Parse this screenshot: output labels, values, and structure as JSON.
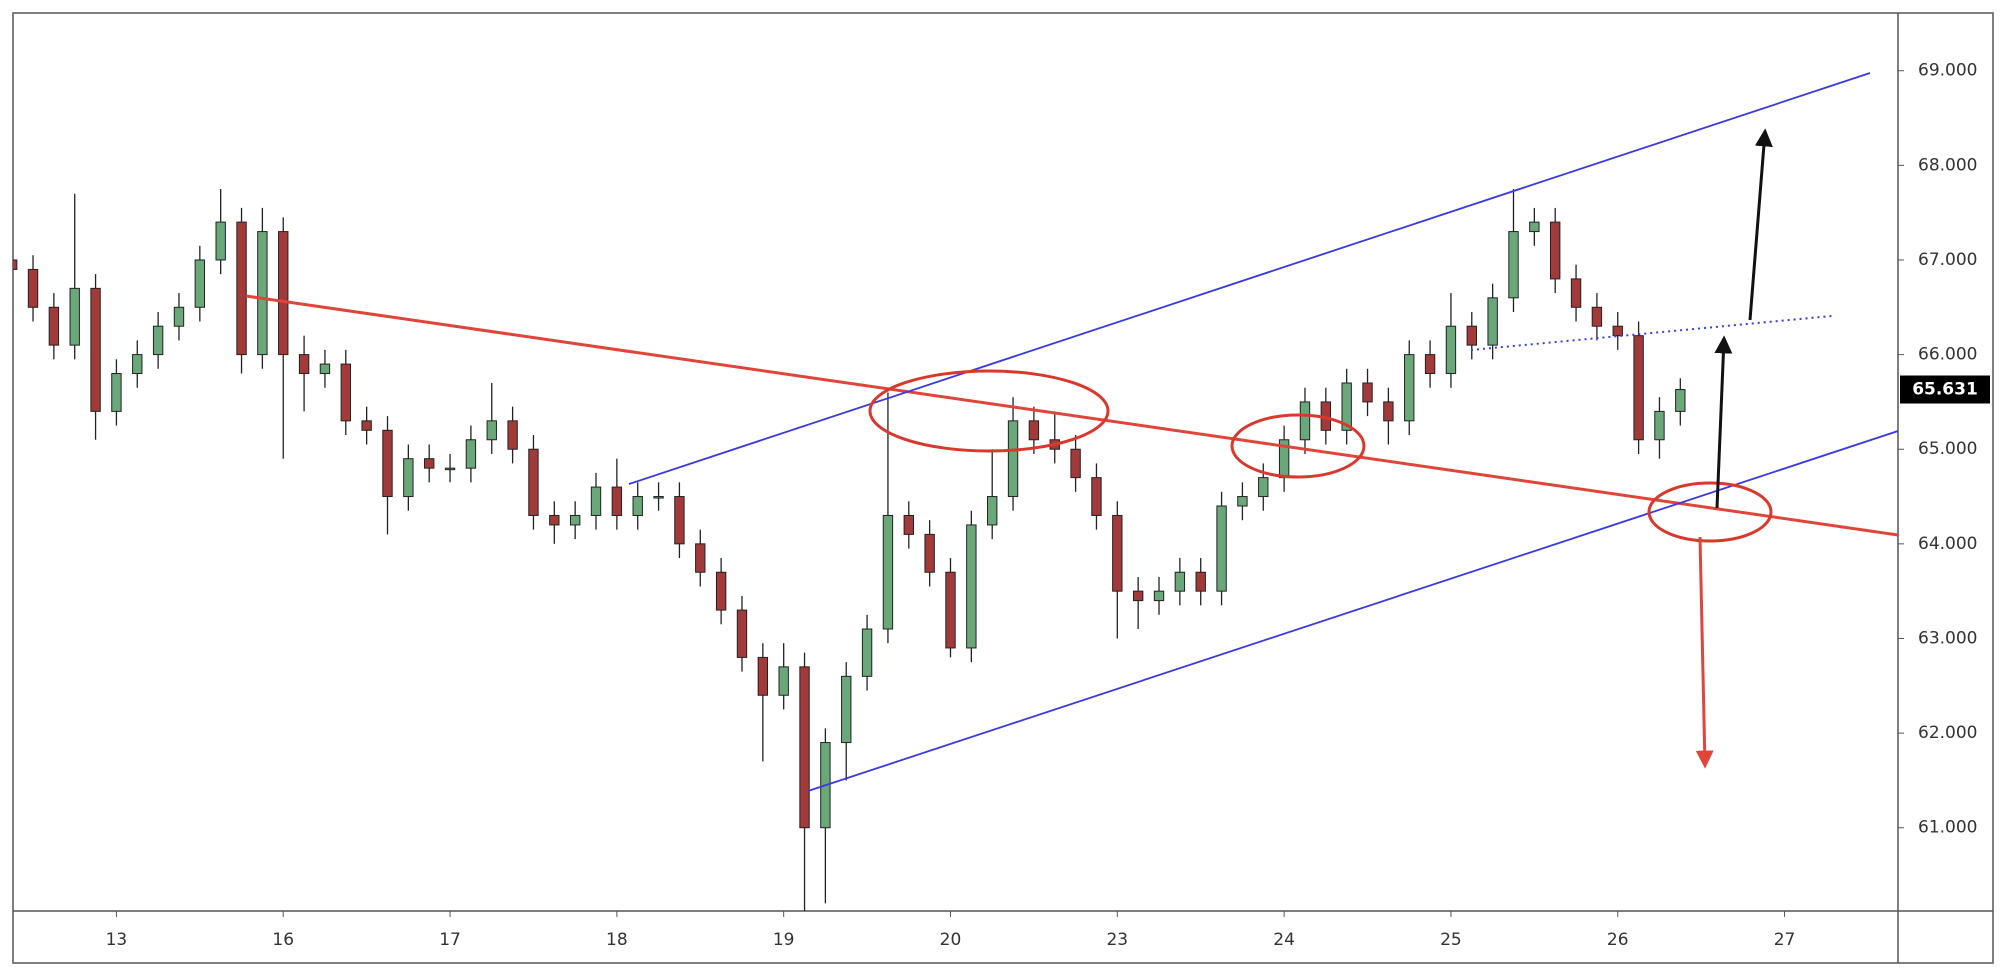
{
  "chart_data": {
    "type": "candlestick",
    "x": [
      -0.625,
      -0.5,
      -0.375,
      -0.25,
      -0.125,
      0,
      0.125,
      0.25,
      0.375,
      0.5,
      0.625,
      0.75,
      0.875,
      1,
      1.125,
      1.25,
      1.375,
      1.5,
      1.625,
      1.75,
      1.875,
      2,
      2.125,
      2.25,
      2.375,
      2.5,
      2.625,
      2.75,
      2.875,
      3,
      3.125,
      3.25,
      3.375,
      3.5,
      3.625,
      3.75,
      3.875,
      4,
      4.125,
      4.25,
      4.375,
      4.5,
      4.625,
      4.75,
      4.875,
      5,
      5.125,
      5.25,
      5.375,
      5.5,
      5.625,
      5.75,
      5.875,
      6,
      6.125,
      6.25,
      6.375,
      6.5,
      6.625,
      6.75,
      6.875,
      7,
      7.125,
      7.25,
      7.375,
      7.5,
      7.625,
      7.75,
      7.875,
      8,
      8.125,
      8.25,
      8.375,
      8.5,
      8.625,
      8.75,
      8.875,
      9,
      9.125,
      9.25,
      9.375
    ],
    "series": {
      "up_color": "#6aa87a",
      "down_color": "#a33a3a",
      "open": [
        67.0,
        66.9,
        66.5,
        66.1,
        66.7,
        65.4,
        65.8,
        66.0,
        66.3,
        66.5,
        67.0,
        67.4,
        66.0,
        67.3,
        66.0,
        65.8,
        65.9,
        65.3,
        65.2,
        64.5,
        64.9,
        64.8,
        64.8,
        65.1,
        65.3,
        65.0,
        64.3,
        64.2,
        64.3,
        64.6,
        64.3,
        64.5,
        64.5,
        64.0,
        63.7,
        63.3,
        62.8,
        62.4,
        62.7,
        61.0,
        61.9,
        62.6,
        63.1,
        64.3,
        64.1,
        63.7,
        62.9,
        64.2,
        64.5,
        65.3,
        65.1,
        65.0,
        64.7,
        64.3,
        63.5,
        63.4,
        63.5,
        63.7,
        63.5,
        64.4,
        64.5,
        64.7,
        65.1,
        65.5,
        65.2,
        65.7,
        65.5,
        65.3,
        66.0,
        65.8,
        66.3,
        66.1,
        66.6,
        67.3,
        67.4,
        66.8,
        66.5,
        66.3,
        66.2,
        65.1,
        65.4
      ],
      "high": [
        67.15,
        67.05,
        66.65,
        67.7,
        66.85,
        65.95,
        66.15,
        66.45,
        66.65,
        67.15,
        67.75,
        67.55,
        67.55,
        67.45,
        66.2,
        66.05,
        66.05,
        65.45,
        65.35,
        65.05,
        65.05,
        64.95,
        65.25,
        65.7,
        65.45,
        65.15,
        64.45,
        64.45,
        64.75,
        64.9,
        64.65,
        64.65,
        64.65,
        64.15,
        63.85,
        63.45,
        62.95,
        62.95,
        62.85,
        62.05,
        62.75,
        63.25,
        65.6,
        64.45,
        64.25,
        63.85,
        64.35,
        65.0,
        65.55,
        65.45,
        65.4,
        65.15,
        64.85,
        64.45,
        63.65,
        63.65,
        63.85,
        63.85,
        64.55,
        64.65,
        64.85,
        65.25,
        65.65,
        65.65,
        65.85,
        65.85,
        65.65,
        66.15,
        66.15,
        66.65,
        66.45,
        66.75,
        67.75,
        67.55,
        67.55,
        66.95,
        66.65,
        66.45,
        66.35,
        65.55,
        65.75
      ],
      "low": [
        66.75,
        66.35,
        65.95,
        65.95,
        65.1,
        65.25,
        65.65,
        65.85,
        66.15,
        66.35,
        66.85,
        65.8,
        65.85,
        64.9,
        65.4,
        65.65,
        65.15,
        65.05,
        64.1,
        64.35,
        64.65,
        64.65,
        64.65,
        64.95,
        64.85,
        64.15,
        64.0,
        64.05,
        64.15,
        64.15,
        64.15,
        64.35,
        63.85,
        63.55,
        63.15,
        62.65,
        61.7,
        62.25,
        60.12,
        60.2,
        61.5,
        62.45,
        62.95,
        63.95,
        63.55,
        62.8,
        62.75,
        64.05,
        64.35,
        64.95,
        64.85,
        64.55,
        64.15,
        63.0,
        63.1,
        63.25,
        63.35,
        63.35,
        63.35,
        64.25,
        64.35,
        64.55,
        64.95,
        65.05,
        65.05,
        65.35,
        65.05,
        65.15,
        65.65,
        65.65,
        65.95,
        65.95,
        66.45,
        67.15,
        66.65,
        66.35,
        66.15,
        66.05,
        64.95,
        64.9,
        65.25
      ],
      "close": [
        66.9,
        66.5,
        66.1,
        66.7,
        65.4,
        65.8,
        66.0,
        66.3,
        66.5,
        67.0,
        67.4,
        66.0,
        67.3,
        66.0,
        65.8,
        65.9,
        65.3,
        65.2,
        64.5,
        64.9,
        64.8,
        64.8,
        65.1,
        65.3,
        65.0,
        64.3,
        64.2,
        64.3,
        64.6,
        64.3,
        64.5,
        64.5,
        64.0,
        63.7,
        63.3,
        62.8,
        62.4,
        62.7,
        61.0,
        61.9,
        62.6,
        63.1,
        64.3,
        64.1,
        63.7,
        62.9,
        64.2,
        64.5,
        65.3,
        65.1,
        65.0,
        64.7,
        64.3,
        63.5,
        63.4,
        63.5,
        63.7,
        63.5,
        64.4,
        64.5,
        64.7,
        65.1,
        65.5,
        65.2,
        65.7,
        65.5,
        65.3,
        66.0,
        65.8,
        66.3,
        66.1,
        66.6,
        67.3,
        67.4,
        66.8,
        66.5,
        66.3,
        66.2,
        65.1,
        65.4,
        65.631
      ],
      "last_value_label": "65.631"
    },
    "xlim": [
      -0.62,
      10.68
    ],
    "xticks": [
      {
        "value": 0,
        "label": "13"
      },
      {
        "value": 1,
        "label": "16"
      },
      {
        "value": 2,
        "label": "17"
      },
      {
        "value": 3,
        "label": "18"
      },
      {
        "value": 4,
        "label": "19"
      },
      {
        "value": 5,
        "label": "20"
      },
      {
        "value": 6,
        "label": "23"
      },
      {
        "value": 7,
        "label": "24"
      },
      {
        "value": 8,
        "label": "25"
      },
      {
        "value": 9,
        "label": "26"
      },
      {
        "value": 10,
        "label": "27"
      }
    ],
    "ylim": [
      60.12,
      69.61
    ],
    "yticks": [
      {
        "value": 61,
        "label": "61.000"
      },
      {
        "value": 62,
        "label": "62.000"
      },
      {
        "value": 63,
        "label": "63.000"
      },
      {
        "value": 64,
        "label": "64.000"
      },
      {
        "value": 65,
        "label": "65.000"
      },
      {
        "value": 66,
        "label": "66.000"
      },
      {
        "value": 67,
        "label": "67.000"
      },
      {
        "value": 68,
        "label": "68.000"
      },
      {
        "value": 69,
        "label": "69.000"
      }
    ],
    "grid": false
  }
}
